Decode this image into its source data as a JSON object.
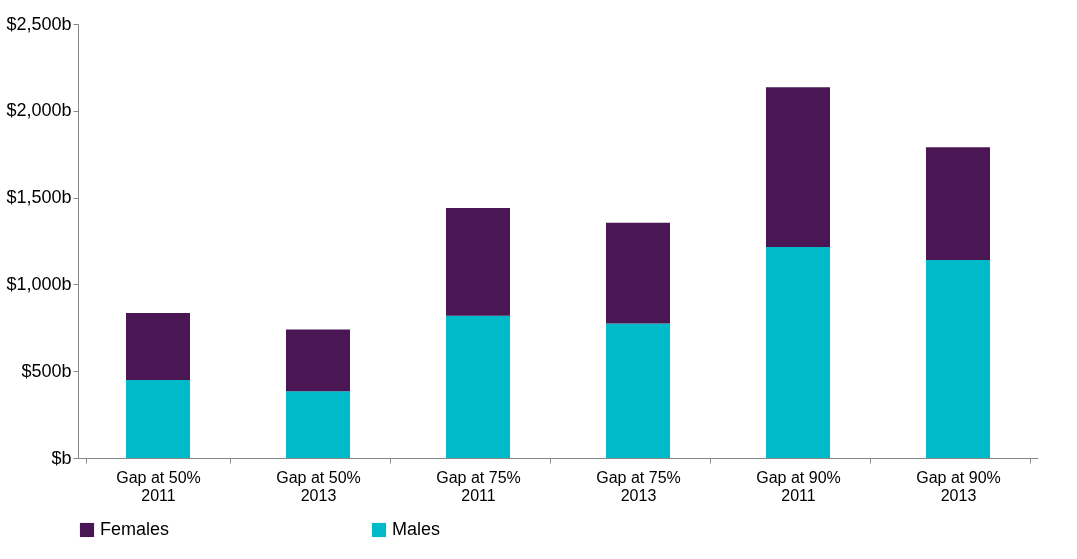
{
  "chart_data": {
    "type": "bar",
    "stacked": true,
    "categories": [
      "Gap at 50%\n2011",
      "Gap at 50%\n2013",
      "Gap at 75%\n2011",
      "Gap at 75%\n2013",
      "Gap at 90%\n2011",
      "Gap at 90%\n2013"
    ],
    "series": [
      {
        "name": "Males",
        "color": "#00b9c9",
        "values": [
          450,
          385,
          820,
          775,
          1215,
          1140
        ]
      },
      {
        "name": "Females",
        "color": "#4a1754",
        "values": [
          385,
          355,
          620,
          580,
          920,
          650
        ]
      }
    ],
    "ylim": [
      0,
      2500
    ],
    "yticks": [
      {
        "value": 0,
        "label": "$b"
      },
      {
        "value": 500,
        "label": "$500b"
      },
      {
        "value": 1000,
        "label": "$1,000b"
      },
      {
        "value": 1500,
        "label": "$1,500b"
      },
      {
        "value": 2000,
        "label": "$2,000b"
      },
      {
        "value": 2500,
        "label": "$2,500b"
      }
    ],
    "grid": false,
    "legend": "bottom"
  }
}
